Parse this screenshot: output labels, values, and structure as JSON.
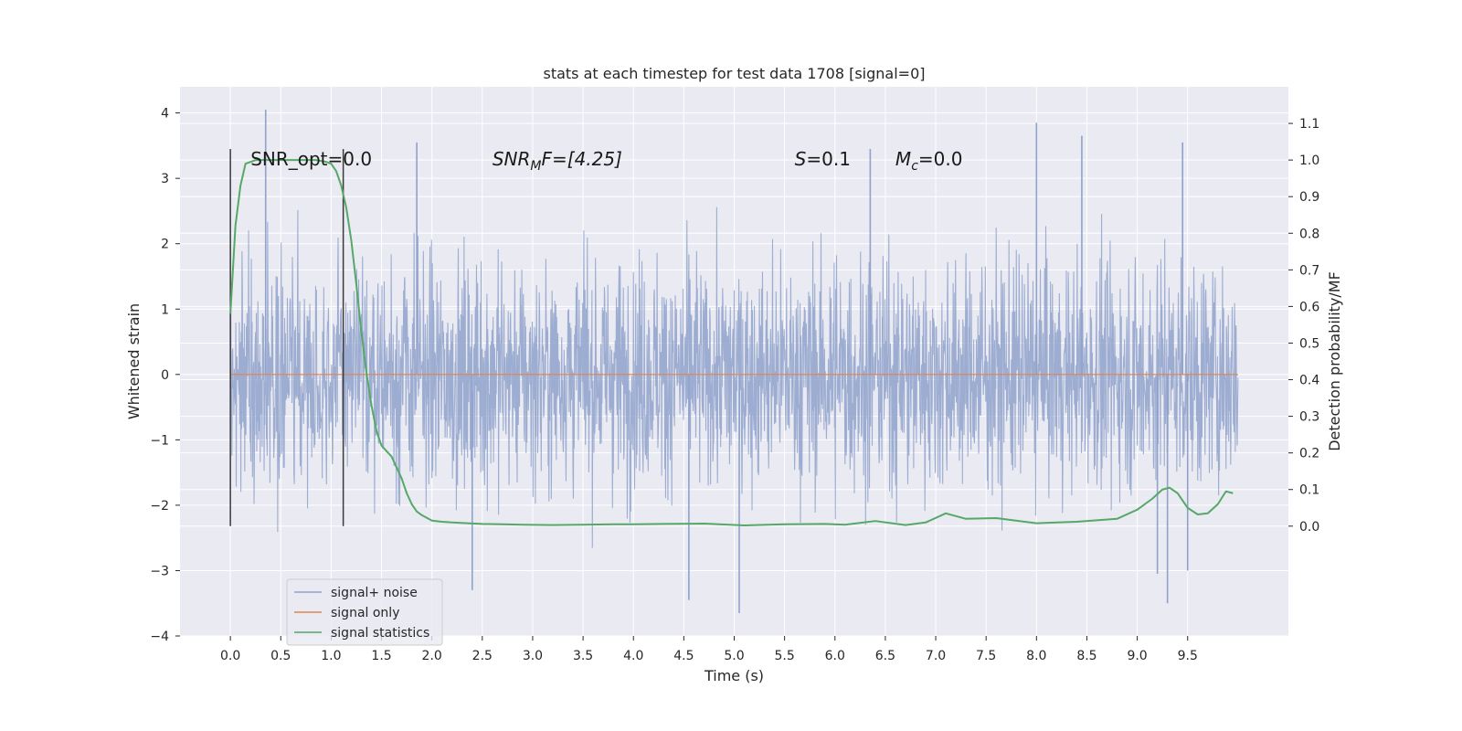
{
  "chart_data": {
    "type": "line",
    "title": "stats at each timestep for test data 1708 [signal=0]",
    "xlabel": "Time (s)",
    "ylabel": "Whitened strain",
    "y2label": "Detection probability/MF",
    "xlim": [
      -0.5,
      10.5
    ],
    "ylim": [
      -4,
      4.4
    ],
    "y2lim": [
      -0.3,
      1.2
    ],
    "xticks": [
      "0.0",
      "0.5",
      "1.0",
      "1.5",
      "2.0",
      "2.5",
      "3.0",
      "3.5",
      "4.0",
      "4.5",
      "5.0",
      "5.5",
      "6.0",
      "6.5",
      "7.0",
      "7.5",
      "8.0",
      "8.5",
      "9.0",
      "9.5"
    ],
    "yticks": [
      "4",
      "3",
      "2",
      "1",
      "0",
      "−1",
      "−2",
      "−3",
      "−4"
    ],
    "y2ticks": [
      "1.1",
      "1.0",
      "0.9",
      "0.8",
      "0.7",
      "0.6",
      "0.5",
      "0.4",
      "0.3",
      "0.2",
      "0.1",
      "0.0"
    ],
    "grid": true,
    "legend": {
      "position": "lower-left",
      "entries": [
        "signal+ noise",
        "signal only",
        "signal statistics"
      ]
    },
    "annotations": {
      "snr_opt": "SNR_opt=0.0",
      "snr_mf_sym": "SNR",
      "snr_mf_sub": "M",
      "snr_mf_rest": "F=[4.25]",
      "s_sym": "S",
      "s_rest": "=0.1",
      "mc_sym": "M",
      "mc_sub": "c",
      "mc_rest": "=0.0"
    },
    "vlines_x": [
      0.0,
      1.12
    ],
    "series": [
      {
        "name": "signal+ noise",
        "color": "#8fa2cb",
        "description_values": "noise spikes roughly between -3.6 and 4.05",
        "peaks_x": [
          0.35,
          1.85,
          2.4,
          4.55,
          5.05,
          6.35,
          8.0,
          8.45,
          9.2,
          9.3,
          9.45,
          9.5
        ],
        "peaks_y": [
          4.05,
          3.55,
          -3.3,
          -3.45,
          -3.65,
          3.45,
          3.85,
          3.65,
          -3.05,
          -3.5,
          3.55,
          -3.0
        ]
      },
      {
        "name": "signal only",
        "color": "#dd8452",
        "x": [
          0.0,
          10.0
        ],
        "values": [
          0.0,
          0.0
        ]
      },
      {
        "name": "signal statistics",
        "color": "#55a868",
        "axis": "right",
        "x": [
          0.0,
          0.05,
          0.1,
          0.15,
          0.25,
          0.35,
          0.5,
          0.7,
          0.85,
          0.95,
          1.0,
          1.05,
          1.1,
          1.15,
          1.2,
          1.25,
          1.3,
          1.35,
          1.4,
          1.45,
          1.5,
          1.6,
          1.7,
          1.75,
          1.8,
          1.85,
          1.9,
          2.0,
          2.1,
          2.2,
          2.35,
          2.5,
          2.7,
          2.9,
          3.2,
          3.5,
          3.8,
          4.0,
          4.3,
          4.7,
          5.1,
          5.5,
          5.9,
          6.1,
          6.4,
          6.7,
          6.9,
          7.1,
          7.3,
          7.6,
          8.0,
          8.4,
          8.8,
          9.0,
          9.15,
          9.25,
          9.32,
          9.4,
          9.5,
          9.6,
          9.7,
          9.8,
          9.88,
          9.95
        ],
        "values": [
          0.58,
          0.82,
          0.93,
          0.99,
          1.0,
          1.0,
          1.0,
          1.0,
          1.0,
          0.995,
          0.99,
          0.97,
          0.93,
          0.87,
          0.78,
          0.66,
          0.53,
          0.42,
          0.33,
          0.26,
          0.22,
          0.19,
          0.13,
          0.09,
          0.06,
          0.04,
          0.03,
          0.015,
          0.012,
          0.01,
          0.008,
          0.006,
          0.005,
          0.004,
          0.003,
          0.004,
          0.005,
          0.005,
          0.006,
          0.007,
          0.002,
          0.005,
          0.006,
          0.004,
          0.014,
          0.003,
          0.01,
          0.035,
          0.02,
          0.022,
          0.008,
          0.012,
          0.02,
          0.045,
          0.075,
          0.1,
          0.105,
          0.09,
          0.05,
          0.032,
          0.035,
          0.06,
          0.095,
          0.09
        ]
      }
    ]
  }
}
